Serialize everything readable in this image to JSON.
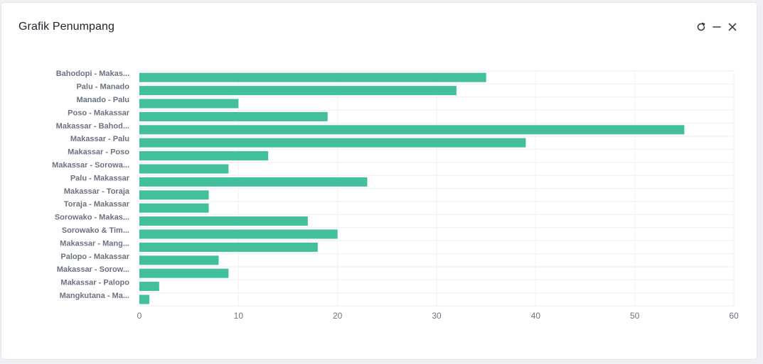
{
  "card": {
    "title": "Grafik Penumpang"
  },
  "toolbar": {
    "refresh_icon": "refresh-icon",
    "minimize_icon": "minus-icon",
    "close_icon": "close-icon"
  },
  "chart_data": {
    "type": "bar",
    "orientation": "horizontal",
    "title": "",
    "xlabel": "",
    "ylabel": "",
    "xlim": [
      0,
      60
    ],
    "x_ticks": [
      0,
      10,
      20,
      30,
      40,
      50,
      60
    ],
    "grid": true,
    "bar_color": "#42bf9b",
    "categories": [
      "Bahodopi - Makas...",
      "Palu - Manado",
      "Manado - Palu",
      "Poso - Makassar",
      "Makassar - Bahod...",
      "Makassar - Palu",
      "Makassar - Poso",
      "Makassar - Sorowa...",
      "Palu - Makassar",
      "Makassar - Toraja",
      "Toraja - Makassar",
      "Sorowako - Makas...",
      "Sorowako & Tim...",
      "Makassar - Mang...",
      "Palopo - Makassar",
      "Makassar - Sorow...",
      "Makassar - Palopo",
      "Mangkutana - Ma..."
    ],
    "values": [
      35,
      32,
      10,
      19,
      55,
      39,
      13,
      9,
      23,
      7,
      7,
      17,
      20,
      18,
      8,
      9,
      2,
      1
    ]
  }
}
